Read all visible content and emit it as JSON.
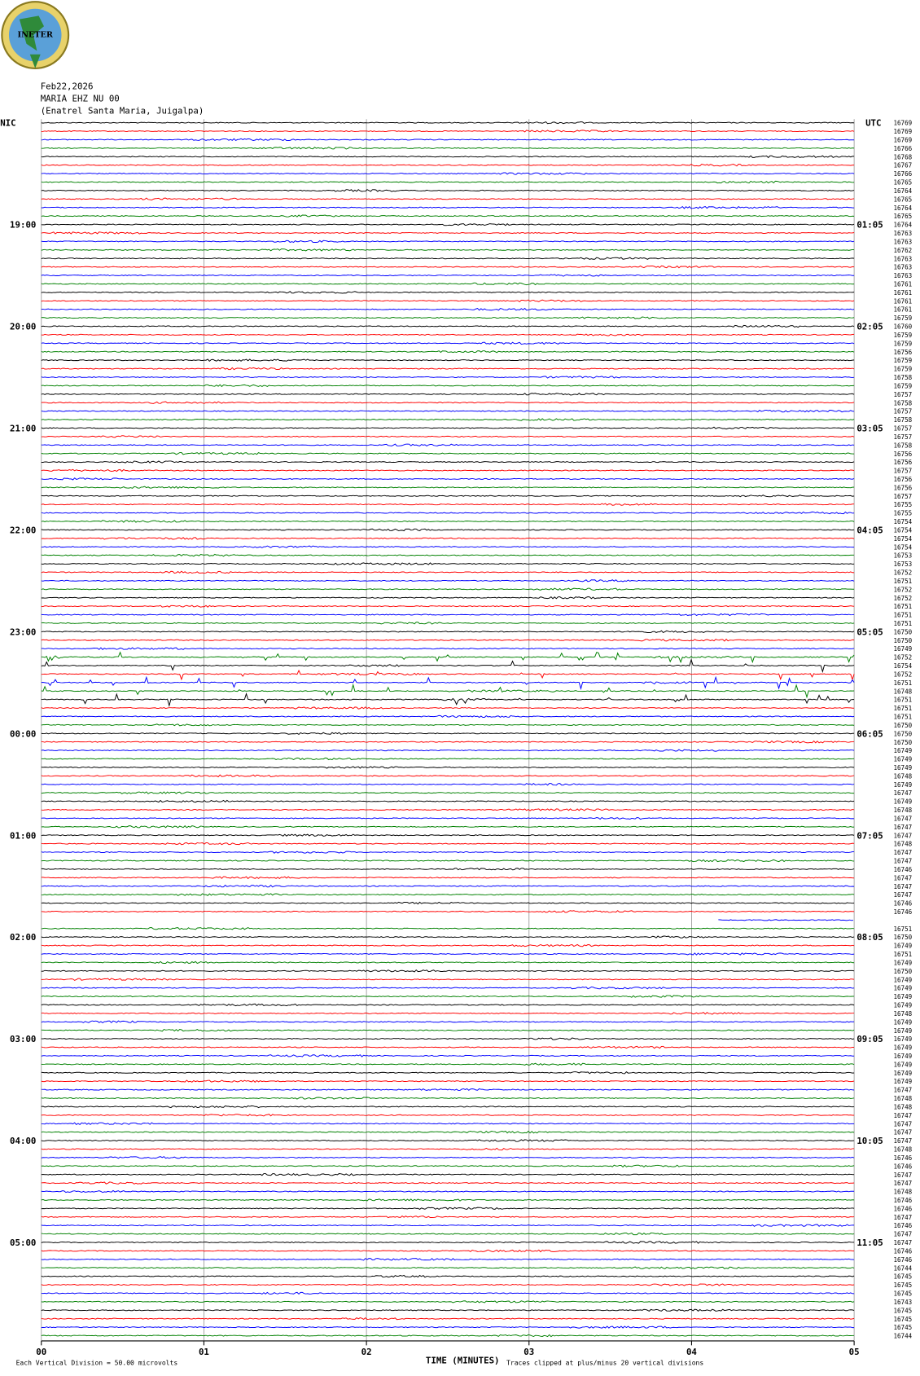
{
  "header": {
    "logo": "INETER",
    "date": "Feb22,2026",
    "station": "MARIA EHZ NU 00",
    "location": "(Enatrel Santa Maria, Juigalpa)"
  },
  "chart_data": {
    "type": "helicorder",
    "left_title": "NIC",
    "right_title": "UTC",
    "left_hours": [
      "19:00",
      "20:00",
      "21:00",
      "22:00",
      "23:00",
      "00:00",
      "01:00",
      "02:00",
      "03:00",
      "04:00",
      "05:00"
    ],
    "right_hours": [
      "01:05",
      "02:05",
      "03:05",
      "04:05",
      "05:05",
      "06:05",
      "07:05",
      "08:05",
      "09:05",
      "10:05",
      "11:05"
    ],
    "colors": [
      "#000000",
      "#ff0000",
      "#0000ff",
      "#008000"
    ],
    "trace_counts": [
      16769,
      16769,
      16769,
      16766,
      16768,
      16767,
      16766,
      16765,
      16764,
      16765,
      16764,
      16765,
      16764,
      16763,
      16763,
      16762,
      16763,
      16763,
      16763,
      16761,
      16761,
      16761,
      16761,
      16759,
      16760,
      16759,
      16759,
      16756,
      16759,
      16759,
      16758,
      16759,
      16757,
      16758,
      16757,
      16758,
      16757,
      16757,
      16758,
      16756,
      16756,
      16757,
      16756,
      16756,
      16757,
      16755,
      16755,
      16754,
      16754,
      16754,
      16754,
      16753,
      16753,
      16752,
      16751,
      16752,
      16752,
      16751,
      16751,
      16751,
      16750,
      16750,
      16749,
      16752,
      16754,
      16752,
      16751,
      16748,
      16751,
      16751,
      16751,
      16750,
      16750,
      16750,
      16749,
      16749,
      16749,
      16748,
      16749,
      16747,
      16749,
      16748,
      16747,
      16747,
      16747,
      16748,
      16747,
      16747,
      16746,
      16747,
      16747,
      16747,
      16746,
      16746,
      null,
      16751,
      16750,
      16749,
      16751,
      16749,
      16750,
      16749,
      16749,
      16749,
      16749,
      16748,
      16749,
      16749,
      16749,
      16749,
      16749,
      16749,
      16749,
      16749,
      16747,
      16748,
      16748,
      16747,
      16747,
      16747,
      16747,
      16748,
      16746,
      16746,
      16747,
      16747,
      16748,
      16746,
      16746,
      16747,
      16746,
      16747,
      16747,
      16746,
      16746,
      16744,
      16745,
      16745,
      16745,
      16743,
      16745,
      16745,
      16745,
      16744
    ],
    "xlim": [
      0,
      5
    ],
    "xticks": [
      {
        "value": 0,
        "label": "00"
      },
      {
        "value": 1,
        "label": "01"
      },
      {
        "value": 2,
        "label": "02"
      },
      {
        "value": 3,
        "label": "03"
      },
      {
        "value": 4,
        "label": "04"
      },
      {
        "value": 5,
        "label": "05"
      }
    ],
    "x_label": "TIME (MINUTES)",
    "footer": {
      "scale": "Each Vertical Division =   50.00 microvolts",
      "clip": "Traces clipped at plus/minus 20 vertical divisions"
    }
  }
}
